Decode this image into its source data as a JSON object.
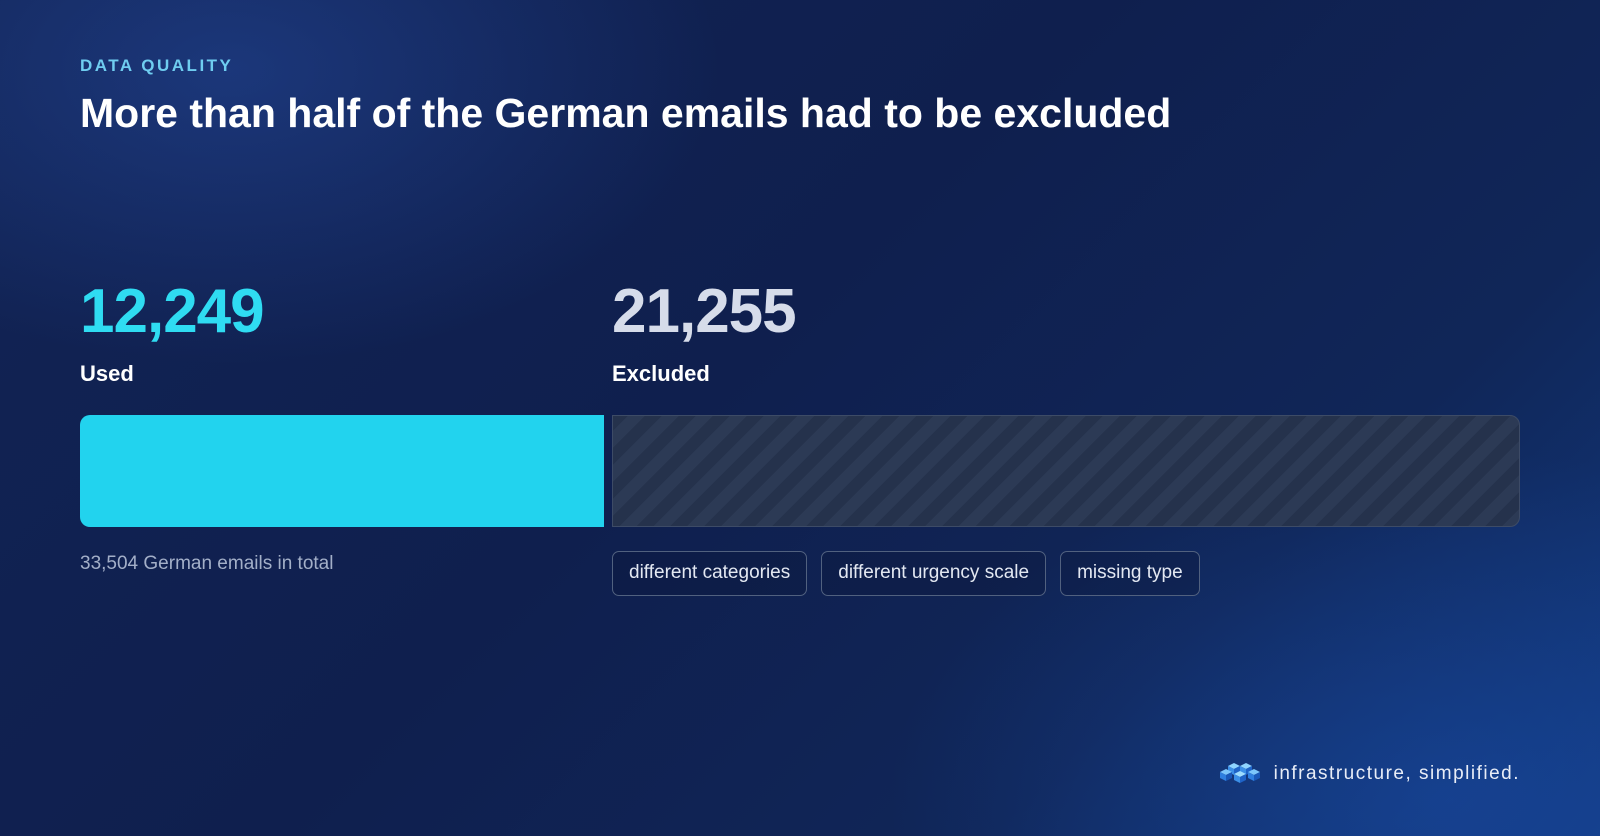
{
  "eyebrow": "DATA QUALITY",
  "headline": "More than half of the German emails had to be excluded",
  "chart_data": {
    "type": "bar",
    "orientation": "horizontal-stacked",
    "categories": [
      "Used",
      "Excluded"
    ],
    "values": [
      12249,
      21255
    ],
    "value_labels": [
      "12,249",
      "21,255"
    ],
    "total": 33504,
    "total_note": "33,504 German emails in total",
    "colors": {
      "used": "#22d3ee",
      "used_number": "#2fdcf2",
      "excluded_number": "#d6dcea",
      "excluded_fill": "#283652"
    }
  },
  "exclusion_reasons": [
    "different categories",
    "different urgency scale",
    "missing type"
  ],
  "brand": {
    "tagline": "infrastructure, simplified.",
    "logo_icon": "stacked-cubes-icon"
  }
}
